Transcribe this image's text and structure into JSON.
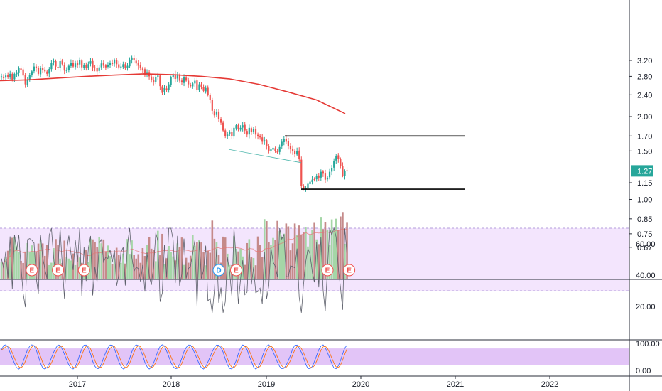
{
  "colors": {
    "up": "#26a69a",
    "down": "#ef5350",
    "up_volume": "#a5d6a7",
    "down_volume": "#c58a8a",
    "ma": "#e53935",
    "rsi_band": "#f3e5fd",
    "stoch_band": "#e2c4f7",
    "last_price_bg": "#26a69a",
    "line": "#000000",
    "osc": "#5d606b",
    "stoch_k": "#2962ff",
    "stoch_d": "#ff6d00",
    "event_border": "#ef5350",
    "dividend_border": "#2196f3"
  },
  "chart_data": {
    "type": "candlestick",
    "x_start": "2016-04",
    "x_ticks": [
      "2017",
      "2018",
      "2019",
      "2020",
      "2021",
      "2022"
    ],
    "price_axis": {
      "scale": "log",
      "ticks": [
        "3.20",
        "2.80",
        "2.40",
        "2.00",
        "1.70",
        "1.50",
        "1.15",
        "1.00",
        "0.85",
        "0.75",
        "0.67"
      ],
      "last_price": "1.27"
    },
    "weekly_close": [
      2.8,
      2.76,
      2.82,
      2.78,
      2.86,
      2.72,
      2.86,
      2.9,
      3.0,
      2.96,
      2.82,
      2.62,
      2.72,
      2.84,
      2.92,
      3.04,
      3.0,
      2.86,
      3.0,
      2.96,
      2.92,
      2.86,
      2.98,
      3.14,
      3.18,
      3.04,
      3.0,
      3.18,
      3.1,
      2.94,
      2.96,
      3.06,
      3.14,
      3.04,
      3.12,
      3.08,
      3.2,
      3.02,
      3.08,
      3.0,
      3.1,
      3.18,
      3.02,
      3.0,
      2.92,
      3.02,
      3.12,
      3.06,
      3.02,
      3.08,
      3.14,
      3.12,
      3.2,
      3.1,
      3.02,
      3.04,
      3.1,
      3.0,
      3.06,
      3.22,
      3.28,
      3.2,
      3.12,
      3.06,
      3.0,
      2.96,
      2.84,
      2.9,
      2.8,
      2.72,
      2.66,
      2.78,
      2.82,
      2.58,
      2.44,
      2.54,
      2.5,
      2.62,
      2.78,
      2.84,
      2.74,
      2.82,
      2.7,
      2.66,
      2.78,
      2.7,
      2.62,
      2.58,
      2.64,
      2.7,
      2.5,
      2.62,
      2.56,
      2.48,
      2.54,
      2.4,
      2.3,
      2.1,
      2.02,
      2.08,
      1.96,
      1.9,
      1.78,
      1.7,
      1.72,
      1.76,
      1.7,
      1.82,
      1.86,
      1.8,
      1.82,
      1.86,
      1.78,
      1.72,
      1.82,
      1.76,
      1.8,
      1.72,
      1.7,
      1.68,
      1.62,
      1.64,
      1.56,
      1.5,
      1.52,
      1.54,
      1.5,
      1.48,
      1.55,
      1.62,
      1.66,
      1.62,
      1.56,
      1.52,
      1.5,
      1.46,
      1.5,
      1.4,
      1.12,
      1.1,
      1.1,
      1.14,
      1.16,
      1.18,
      1.18,
      1.22,
      1.2,
      1.26,
      1.24,
      1.18,
      1.2,
      1.26,
      1.3,
      1.38,
      1.44,
      1.4,
      1.32,
      1.22,
      1.27,
      1.27
    ],
    "ma_200": {
      "start_value": 2.7,
      "end_value": 2.05
    },
    "horizontal_lines": [
      1.7,
      1.09
    ],
    "trend_line": {
      "from": 1.52,
      "to": 1.36
    },
    "events": [
      {
        "label": "E",
        "type": "earnings",
        "week": 14
      },
      {
        "label": "E",
        "type": "earnings",
        "week": 26
      },
      {
        "label": "E",
        "type": "earnings",
        "week": 38
      },
      {
        "label": "D",
        "type": "dividend",
        "week": 100
      },
      {
        "label": "E",
        "type": "earnings",
        "week": 108
      },
      {
        "label": "E",
        "type": "earnings",
        "week": 150
      },
      {
        "label": "E",
        "type": "earnings",
        "week": 160
      }
    ],
    "rsi": {
      "ticks": [
        "60.00",
        "40.00",
        "20.00"
      ],
      "band": [
        30,
        70
      ]
    },
    "stoch": {
      "ticks": [
        "100.00",
        "0.00"
      ],
      "band": [
        20,
        80
      ]
    }
  }
}
